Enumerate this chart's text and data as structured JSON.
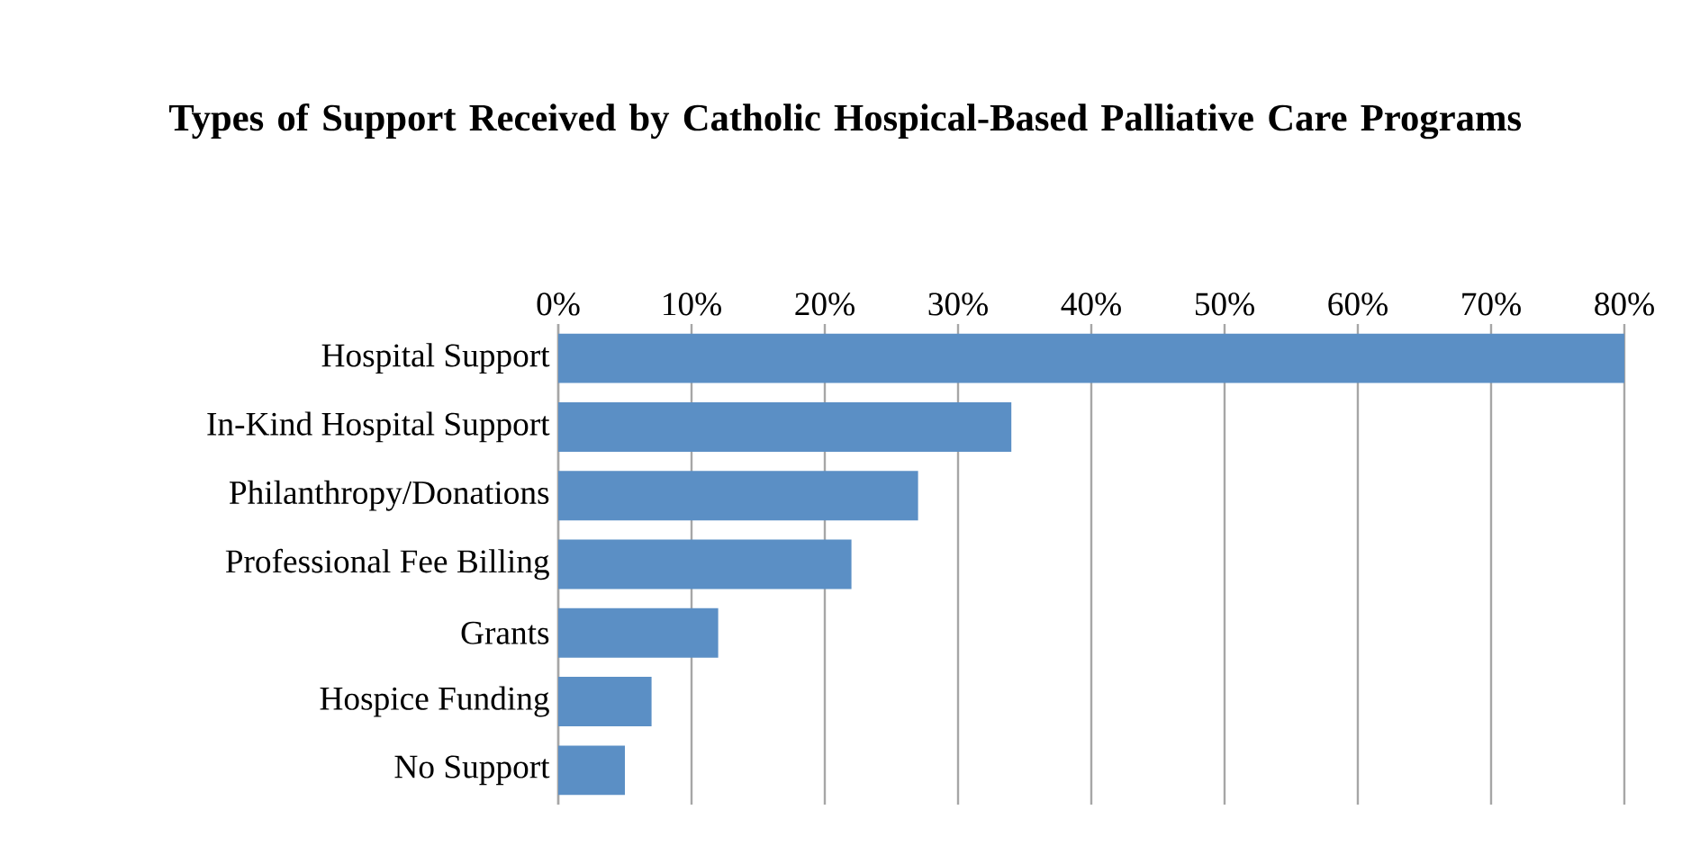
{
  "chart_data": {
    "type": "bar",
    "orientation": "horizontal",
    "title": "Types of Support Received by Catholic Hospical-Based Palliative Care Programs",
    "categories": [
      "Hospital Support",
      "In-Kind Hospital Support",
      "Philanthropy/Donations",
      "Professional Fee Billing",
      "Grants",
      "Hospice Funding",
      "No Support"
    ],
    "values": [
      80,
      34,
      27,
      22,
      12,
      7,
      5
    ],
    "color": "#5b8fc5",
    "xlim": [
      0,
      80
    ],
    "xticks": [
      {
        "value": 0,
        "label": "0%"
      },
      {
        "value": 10,
        "label": "10%"
      },
      {
        "value": 20,
        "label": "20%"
      },
      {
        "value": 30,
        "label": "30%"
      },
      {
        "value": 40,
        "label": "40%"
      },
      {
        "value": 50,
        "label": "50%"
      },
      {
        "value": 60,
        "label": "60%"
      },
      {
        "value": 70,
        "label": "70%"
      },
      {
        "value": 80,
        "label": "80%"
      }
    ],
    "grid": "x"
  }
}
